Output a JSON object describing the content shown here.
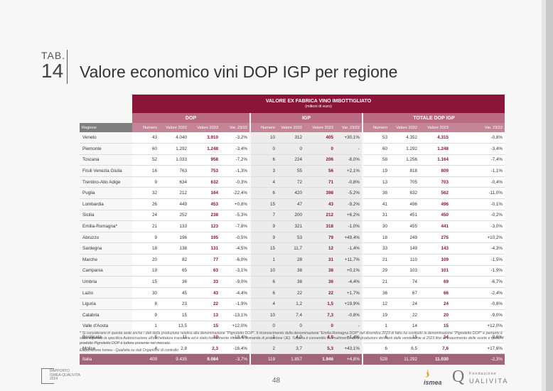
{
  "header": {
    "tab_label": "TAB.",
    "tab_number": "14",
    "title": "Valore economico vini DOP IGP per regione"
  },
  "table": {
    "main_title": "VALORE EX FABRICA VINO IMBOTTIGLIATO",
    "main_subtitle": "(milioni di euro)",
    "groups": [
      "DOP",
      "IGP",
      "TOTALE DOP IGP"
    ],
    "columns": [
      "Regione",
      "Numero",
      "Valore 2022",
      "Valore 2023",
      "Var. 23/22",
      "Numero",
      "Valore 2022",
      "Valore 2023",
      "Var. 23/22",
      "Numero",
      "Valore 2022",
      "Valore 2023",
      "Var. 23/22"
    ],
    "rows": [
      [
        "Veneto",
        "43",
        "4.040",
        "3.910",
        "-3,2%",
        "10",
        "312",
        "405",
        "+30,1%",
        "53",
        "4.352",
        "4.315",
        "-0,8%"
      ],
      [
        "Piemonte",
        "60",
        "1.292",
        "1.248",
        "-3,4%",
        "0",
        "0",
        "0",
        "-",
        "60",
        "1.292",
        "1.248",
        "-3,4%"
      ],
      [
        "Toscana",
        "52",
        "1.033",
        "958",
        "-7,2%",
        "6",
        "224",
        "206",
        "-8,0%",
        "58",
        "1.256",
        "1.164",
        "-7,4%"
      ],
      [
        "Friuli Venezia Giulia",
        "16",
        "763",
        "753",
        "-1,3%",
        "3",
        "55",
        "56",
        "+2,1%",
        "19",
        "818",
        "809",
        "-1,1%"
      ],
      [
        "Trentino-Alto Adige",
        "9",
        "634",
        "632",
        "-0,3%",
        "4",
        "72",
        "71",
        "-0,8%",
        "13",
        "705",
        "703",
        "-0,4%"
      ],
      [
        "Puglia",
        "32",
        "212",
        "164",
        "-22,4%",
        "6",
        "420",
        "398",
        "-5,2%",
        "38",
        "632",
        "562",
        "-11,0%"
      ],
      [
        "Lombardia",
        "26",
        "449",
        "453",
        "+0,8%",
        "15",
        "47",
        "43",
        "-9,2%",
        "41",
        "496",
        "496",
        "-0,1%"
      ],
      [
        "Sicilia",
        "24",
        "252",
        "238",
        "-5,3%",
        "7",
        "200",
        "212",
        "+6,2%",
        "31",
        "451",
        "450",
        "-0,2%"
      ],
      [
        "Emilia-Romagna*",
        "21",
        "133",
        "123",
        "-7,8%",
        "9",
        "321",
        "318",
        "-1,0%",
        "30",
        "455",
        "441",
        "-3,0%"
      ],
      [
        "Abruzzo",
        "9",
        "196",
        "195",
        "-0,5%",
        "9",
        "53",
        "79",
        "+49,4%",
        "18",
        "249",
        "275",
        "+10,2%"
      ],
      [
        "Sardegna",
        "18",
        "138",
        "131",
        "-4,5%",
        "15",
        "11,7",
        "12",
        "-1,4%",
        "33",
        "149",
        "143",
        "-4,3%"
      ],
      [
        "Marche",
        "20",
        "82",
        "77",
        "-6,0%",
        "1",
        "28",
        "31",
        "+11,7%",
        "21",
        "110",
        "109",
        "-1,5%"
      ],
      [
        "Campania",
        "19",
        "65",
        "63",
        "-3,1%",
        "10",
        "38",
        "38",
        "+0,1%",
        "29",
        "103",
        "101",
        "-1,9%"
      ],
      [
        "Umbria",
        "15",
        "36",
        "33",
        "-9,0%",
        "6",
        "38",
        "36",
        "-4,4%",
        "21",
        "74",
        "69",
        "-6,7%"
      ],
      [
        "Lazio",
        "30",
        "45",
        "43",
        "-4,4%",
        "6",
        "22",
        "22",
        "+1,7%",
        "36",
        "67",
        "66",
        "-2,4%"
      ],
      [
        "Liguria",
        "8",
        "23",
        "22",
        "-1,9%",
        "4",
        "1,2",
        "1,5",
        "+19,9%",
        "12",
        "24",
        "24",
        "-0,8%"
      ],
      [
        "Calabria",
        "9",
        "15",
        "13",
        "-13,1%",
        "10",
        "7,4",
        "7,3",
        "-0,8%",
        "19",
        "22",
        "20",
        "-9,0%"
      ],
      [
        "Valle d'Aosta",
        "1",
        "13,5",
        "15",
        "+12,0%",
        "0",
        "0",
        "0",
        "-",
        "1",
        "14",
        "15",
        "+12,0%"
      ],
      [
        "Basilicata",
        "5",
        "11",
        "10",
        "-13,4%",
        "1",
        "4,0",
        "4,0",
        "+1,4%",
        "6",
        "15",
        "14",
        "-9,6%"
      ],
      [
        "Molise",
        "4",
        "2,8",
        "2,3",
        "-16,4%",
        "2",
        "3,7",
        "5,3",
        "+43,1%",
        "6",
        "6,5",
        "7,6",
        "+17,6%"
      ]
    ],
    "total": [
      "Italia",
      "409",
      "9.435",
      "9.084",
      "-3,7%",
      "119",
      "1.857",
      "1.946",
      "+4,8%",
      "528",
      "11.292",
      "11.030",
      "-2,3%"
    ]
  },
  "notes": {
    "footnote": "* Si considerano in questa sede anche i dati della produzione relativa alla denominazione \"Pignoletto DOP\". Il riconoscimento della denominazione \"Emilia-Romagna DOP\" nel dicembre 2023 di fatto ha sostituito la denominazione \"Pignoletto DOP\" e pertanto è stato superato la specifica Autorizzazione all'etichettatura transitoria ed è stato formalmente ritirata la domanda di protezione UE). Tuttavia è consentito lo smaltimento delle produzioni derivanti dalle vendemmie al 2023 fino all'esaurimento delle scorte e quindi il prodotto Pignoletto DOP è tuttora presente nel mercato.",
    "source": "Elaborazione Ismea - Qualivita su dati Organismi di controllo"
  },
  "footer": {
    "page_number": "48",
    "report_logo": [
      "RAPPORTO",
      "ISMEA-QUALIVITA",
      "2024"
    ],
    "ismea": "ismea",
    "qualivita_q": "Q",
    "qualivita_fondazione": "Fondazione",
    "qualivita_name": "UALIVITA"
  }
}
